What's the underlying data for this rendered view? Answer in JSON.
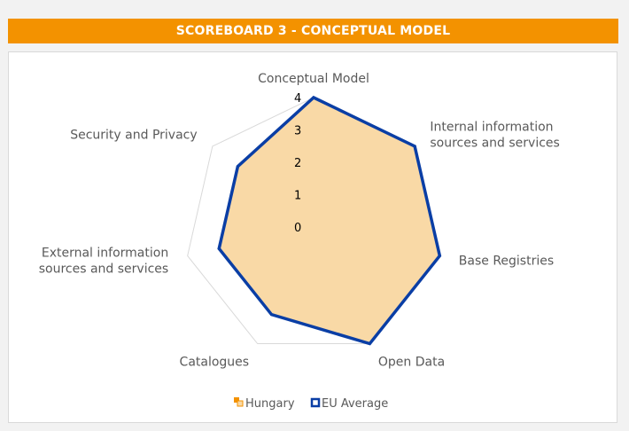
{
  "header": {
    "title": "SCOREBOARD 3 - CONCEPTUAL MODEL"
  },
  "colors": {
    "header_bg": "#f39200",
    "hungary_fill": "#f9d9a6",
    "hungary_marker": "#f39200",
    "eu_line": "#0a3ea5",
    "grid": "#d9d9d9"
  },
  "chart_data": {
    "type": "radar",
    "title": "",
    "categories": [
      "Conceptual Model",
      "Internal information sources and services",
      "Base Registries",
      "Open Data",
      "Catalogues",
      "External information sources and services",
      "Security and Privacy"
    ],
    "category_lines": [
      [
        "Conceptual Model"
      ],
      [
        "Internal information",
        "sources and services"
      ],
      [
        "Base Registries"
      ],
      [
        "Open Data"
      ],
      [
        "Catalogues"
      ],
      [
        "External information",
        "sources and services"
      ],
      [
        "Security and Privacy"
      ]
    ],
    "rlim": [
      0,
      4
    ],
    "ticks": [
      "0",
      "1",
      "2",
      "3",
      "4"
    ],
    "grid": true,
    "legend_position": "bottom",
    "series": [
      {
        "name": "Hungary",
        "values": [
          4,
          4,
          4,
          4,
          3,
          3,
          3
        ],
        "style": "filled"
      },
      {
        "name": "EU Average",
        "values": [
          4,
          4,
          4,
          4,
          3,
          3,
          3
        ],
        "style": "line"
      }
    ]
  }
}
